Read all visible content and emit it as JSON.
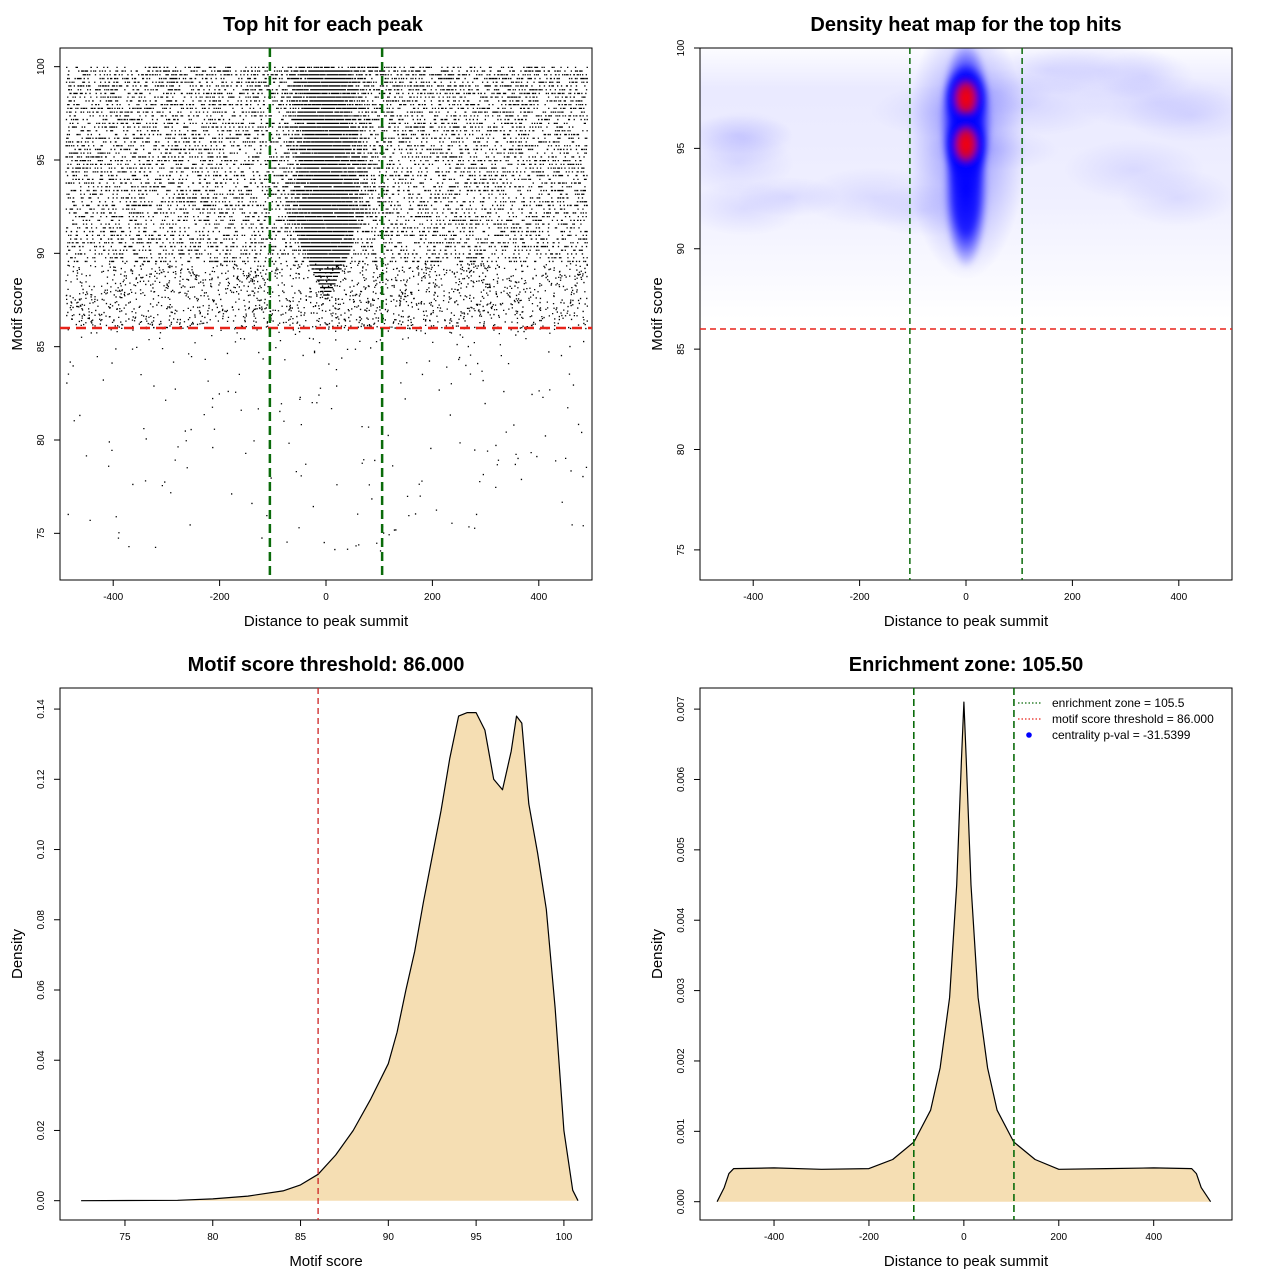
{
  "chart_data": [
    {
      "type": "scatter",
      "title": "Top hit for each peak",
      "xlabel": "Distance to peak summit",
      "ylabel": "Motif score",
      "xlim": [
        -500,
        500
      ],
      "ylim": [
        72.5,
        101
      ],
      "xticks": [
        -400,
        -200,
        0,
        200,
        400
      ],
      "yticks": [
        75,
        80,
        85,
        90,
        95,
        100
      ],
      "hlines": [
        {
          "value": 86.0,
          "color": "#e8231a"
        }
      ],
      "vlines": [
        {
          "value": -105.5,
          "color": "#0a6b0a"
        },
        {
          "value": 105.5,
          "color": "#0a6b0a"
        }
      ],
      "point_distribution": {
        "x_range": [
          -490,
          490
        ],
        "score_max": 100,
        "score_low_tail_min": 74,
        "central_cone_min_score": 87.5,
        "outer_dense_min_score": 89.5,
        "threshold_score": 86.0
      }
    },
    {
      "type": "heatmap",
      "title": "Density heat map for the top hits",
      "xlabel": "Distance to peak summit",
      "ylabel": "Motif score",
      "xlim": [
        -500,
        500
      ],
      "ylim": [
        73.5,
        100
      ],
      "xticks": [
        -400,
        -200,
        0,
        200,
        400
      ],
      "yticks": [
        75,
        80,
        85,
        90,
        95,
        100
      ],
      "hlines": [
        {
          "value": 86.0,
          "color": "#e8231a"
        }
      ],
      "vlines": [
        {
          "value": -105.5,
          "color": "#0a6b0a"
        },
        {
          "value": 105.5,
          "color": "#0a6b0a"
        }
      ],
      "colors": [
        "#ffffff",
        "#0000ff",
        "#ff0000"
      ],
      "hotspots": [
        {
          "x": 0,
          "y": 97.5,
          "intensity": "high"
        },
        {
          "x": 0,
          "y": 95.2,
          "intensity": "high"
        }
      ]
    },
    {
      "type": "area",
      "title": "Motif score threshold: 86.000",
      "xlabel": "Motif score",
      "ylabel": "Density",
      "xlim": [
        71.3,
        101.6
      ],
      "ylim": [
        -0.0055,
        0.146
      ],
      "xticks": [
        75,
        80,
        85,
        90,
        95,
        100
      ],
      "yticks": [
        0.0,
        0.02,
        0.04,
        0.06,
        0.08,
        0.1,
        0.12,
        0.14
      ],
      "ytick_labels": [
        "0.00",
        "0.02",
        "0.04",
        "0.06",
        "0.08",
        "0.10",
        "0.12",
        "0.14"
      ],
      "fill": "#f5deb3",
      "vlines": [
        {
          "value": 86.0,
          "color": "#cc2222"
        }
      ],
      "x": [
        72.5,
        78,
        80,
        82,
        84,
        85,
        86,
        87,
        88,
        89,
        90,
        90.5,
        91,
        91.5,
        92,
        93,
        93.5,
        94,
        94.5,
        95,
        95.5,
        96,
        96.5,
        97,
        97.3,
        97.6,
        98,
        98.5,
        99,
        99.5,
        100,
        100.5,
        100.8
      ],
      "values": [
        0.0,
        0.0001,
        0.0005,
        0.0013,
        0.0028,
        0.0045,
        0.0075,
        0.013,
        0.02,
        0.029,
        0.039,
        0.048,
        0.06,
        0.071,
        0.085,
        0.111,
        0.126,
        0.138,
        0.139,
        0.139,
        0.134,
        0.12,
        0.117,
        0.128,
        0.138,
        0.136,
        0.113,
        0.099,
        0.083,
        0.055,
        0.02,
        0.003,
        0.0
      ]
    },
    {
      "type": "area",
      "title": "Enrichment zone: 105.50",
      "xlabel": "Distance to peak summit",
      "ylabel": "Density",
      "xlim": [
        -556,
        565
      ],
      "ylim": [
        -0.00026,
        0.0073
      ],
      "xticks": [
        -400,
        -200,
        0,
        200,
        400
      ],
      "yticks": [
        0.0,
        0.001,
        0.002,
        0.003,
        0.004,
        0.005,
        0.006,
        0.007
      ],
      "ytick_labels": [
        "0.000",
        "0.001",
        "0.002",
        "0.003",
        "0.004",
        "0.005",
        "0.006",
        "0.007"
      ],
      "fill": "#f5deb3",
      "vlines": [
        {
          "value": -105.5,
          "color": "#0a6b0a"
        },
        {
          "value": 105.5,
          "color": "#0a6b0a"
        }
      ],
      "x": [
        -520,
        -505,
        -495,
        -485,
        -400,
        -300,
        -200,
        -150,
        -105,
        -70,
        -50,
        -30,
        -15,
        -5,
        0,
        5,
        15,
        30,
        50,
        70,
        105,
        150,
        200,
        300,
        400,
        480,
        490,
        500,
        520
      ],
      "values": [
        0.0,
        0.0002,
        0.0004,
        0.00047,
        0.00048,
        0.00046,
        0.00047,
        0.0006,
        0.00085,
        0.0013,
        0.0019,
        0.0029,
        0.0045,
        0.0063,
        0.0071,
        0.0063,
        0.0045,
        0.0029,
        0.0019,
        0.0013,
        0.00085,
        0.0006,
        0.00046,
        0.00047,
        0.00048,
        0.00047,
        0.0004,
        0.0002,
        0.0
      ],
      "legend": {
        "position": "top-right",
        "items": [
          {
            "label": "enrichment zone = 105.5",
            "color": "#0a6b0a",
            "style": "dotted-line"
          },
          {
            "label": "motif score threshold = 86.000",
            "color": "#e8231a",
            "style": "dotted-line"
          },
          {
            "label": "centrality p-val = -31.5399",
            "color": "#0000ff",
            "style": "point"
          }
        ]
      }
    }
  ]
}
